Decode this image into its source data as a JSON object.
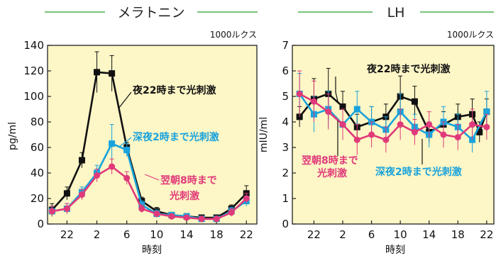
{
  "chart_data": [
    {
      "type": "line",
      "title": "メラトニン",
      "condition": "1000ルクス",
      "xlabel": "時刻",
      "ylabel": "pg/ml",
      "x_ticks": [
        "22",
        "2",
        "6",
        "10",
        "14",
        "18",
        "22"
      ],
      "x_tick_pos": [
        22,
        26,
        30,
        34,
        38,
        42,
        46
      ],
      "y_ticks": [
        "0",
        "20",
        "40",
        "60",
        "80",
        "100",
        "120",
        "140"
      ],
      "ylim": [
        0,
        140
      ],
      "xlim": [
        19.4,
        47.4
      ],
      "x": [
        20,
        22,
        24,
        26,
        28,
        30,
        32,
        34,
        36,
        38,
        40,
        42,
        44,
        46
      ],
      "series": [
        {
          "name": "夜22時まで光刺激",
          "color": "#111111",
          "marker": "square",
          "values": [
            11,
            24,
            50,
            119,
            118,
            60,
            18,
            10,
            7,
            6,
            5,
            5,
            12,
            24
          ],
          "err": [
            5,
            5,
            6,
            16,
            14,
            4,
            3,
            3,
            2,
            2,
            2,
            2,
            3,
            6
          ]
        },
        {
          "name": "深夜2時まで光刺激",
          "color": "#19a3dc",
          "marker": "square",
          "values": [
            10,
            12,
            25,
            40,
            63,
            58,
            15,
            8,
            7,
            6,
            4,
            4,
            10,
            18
          ],
          "err": [
            4,
            4,
            4,
            6,
            15,
            5,
            3,
            3,
            2,
            2,
            2,
            2,
            3,
            4
          ]
        },
        {
          "name": "翌朝8時まで光刺激",
          "color": "#e03a7a",
          "marker": "circle",
          "values": [
            10,
            12,
            23,
            38,
            45,
            36,
            12,
            8,
            6,
            5,
            4,
            4,
            9,
            20
          ],
          "err": [
            4,
            4,
            4,
            5,
            6,
            5,
            3,
            2,
            2,
            2,
            2,
            2,
            3,
            4
          ]
        }
      ],
      "annotations": [
        {
          "text": "夜22時まで光刺激",
          "color": "#111111"
        },
        {
          "text": "深夜2時まで光刺激",
          "color": "#19a3dc"
        },
        {
          "text": "翌朝8時まで",
          "color": "#e03a7a"
        },
        {
          "text": "光刺激",
          "color": "#e03a7a"
        }
      ]
    },
    {
      "type": "line",
      "title": "LH",
      "condition": "1000ルクス",
      "xlabel": "時刻",
      "ylabel": "mIU/ml",
      "x_ticks": [
        "22",
        "2",
        "6",
        "10",
        "14",
        "18",
        "22"
      ],
      "x_tick_pos": [
        22,
        26,
        30,
        34,
        38,
        42,
        46
      ],
      "y_ticks": [
        "0",
        "1",
        "2",
        "3",
        "4",
        "5",
        "6",
        "7"
      ],
      "ylim": [
        0,
        7
      ],
      "xlim": [
        19,
        47
      ],
      "x": [
        20,
        21.5,
        23,
        24.5,
        26,
        27.5,
        29,
        30.5,
        32,
        33.5,
        35,
        36.5,
        38,
        39.5,
        41,
        42.5,
        44,
        45.5
      ],
      "series": [
        {
          "name": "夜22時まで光刺激",
          "color": "#111111",
          "marker": "square",
          "values": [
            4.2,
            4.9,
            5.1,
            4.6,
            3.8,
            4.0,
            4.2,
            5.0,
            4.8,
            3.6,
            3.9,
            4.2,
            4.3,
            3.6,
            4.4
          ],
          "x": [
            20,
            22,
            24,
            26,
            28,
            30,
            32,
            34,
            36,
            38,
            40,
            42,
            44,
            45,
            46
          ],
          "err": [
            0.4,
            0.8,
            1.0,
            0.6,
            0.5,
            0.6,
            0.5,
            0.8,
            0.6,
            0.4,
            0.5,
            0.5,
            0.6,
            0.4,
            0.5
          ]
        },
        {
          "name": "深夜2時まで光刺激",
          "color": "#19a3dc",
          "marker": "square",
          "values": [
            5.1,
            4.3,
            4.5,
            3.9,
            4.5,
            4.0,
            3.7,
            4.4,
            3.8,
            3.5,
            4.0,
            3.8,
            3.3,
            4.4
          ],
          "x": [
            20,
            22,
            24,
            26,
            28,
            30,
            32,
            34,
            36,
            38,
            40,
            42,
            44,
            46
          ],
          "err": [
            0.8,
            0.7,
            0.7,
            0.6,
            0.7,
            0.6,
            0.5,
            0.7,
            0.5,
            0.5,
            0.6,
            0.5,
            0.5,
            0.8
          ]
        },
        {
          "name": "翌朝8時まで光刺激",
          "color": "#e03a7a",
          "marker": "circle",
          "values": [
            5.1,
            4.8,
            4.4,
            3.9,
            3.3,
            3.5,
            3.3,
            3.9,
            3.6,
            3.9,
            3.5,
            3.4,
            3.9,
            3.8
          ],
          "x": [
            20,
            22,
            24,
            26,
            28,
            30,
            32,
            34,
            36,
            38,
            40,
            42,
            44,
            46
          ],
          "err": [
            0.9,
            0.8,
            0.7,
            0.6,
            0.6,
            0.5,
            0.5,
            0.6,
            0.5,
            0.5,
            0.5,
            0.5,
            0.6,
            0.5
          ]
        }
      ],
      "annotations": [
        {
          "text": "夜22時まで光刺激",
          "color": "#111111"
        },
        {
          "text": "翌朝8時まで",
          "color": "#e03a7a"
        },
        {
          "text": "光刺激",
          "color": "#e03a7a"
        },
        {
          "text": "深夜2時まで光刺激",
          "color": "#19a3dc"
        }
      ]
    }
  ],
  "colors": {
    "plot_background": "#fdf6c6",
    "title_rule": "#4caf50"
  }
}
